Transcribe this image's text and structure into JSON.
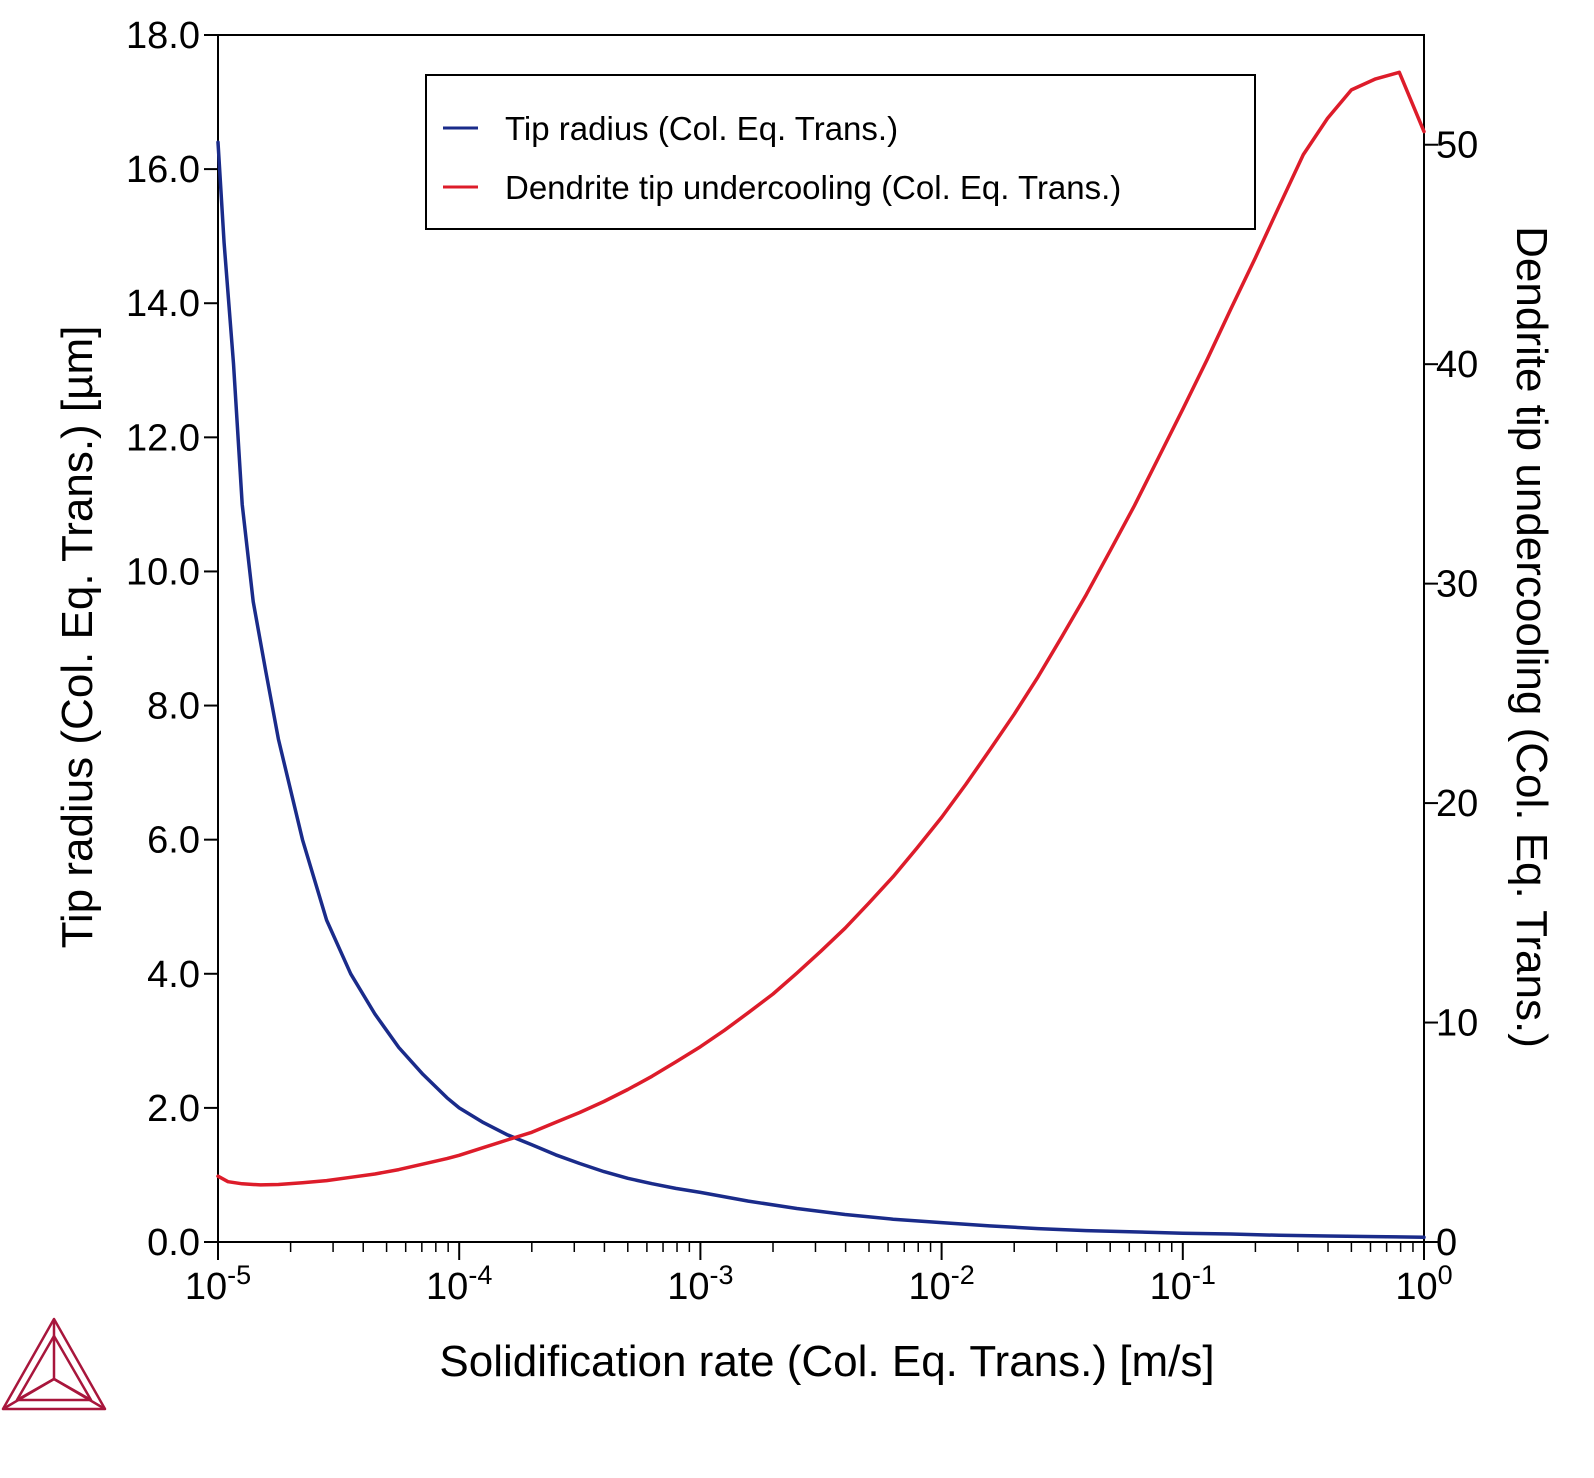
{
  "chart_data": {
    "type": "line",
    "xlabel": "Solidification rate (Col. Eq. Trans.) [m/s]",
    "ylabel_left": "Tip radius (Col. Eq. Trans.) [µm]",
    "ylabel_right": "Dendrite tip undercooling (Col. Eq. Trans.)",
    "x_scale": "log",
    "xlim": [
      1e-05,
      1
    ],
    "ylim_left": [
      0,
      18
    ],
    "ylim_right": [
      0,
      55
    ],
    "x_ticks": [
      {
        "value": 1e-05,
        "base": "10",
        "exp": "-5"
      },
      {
        "value": 0.0001,
        "base": "10",
        "exp": "-4"
      },
      {
        "value": 0.001,
        "base": "10",
        "exp": "-3"
      },
      {
        "value": 0.01,
        "base": "10",
        "exp": "-2"
      },
      {
        "value": 0.1,
        "base": "10",
        "exp": "-1"
      },
      {
        "value": 1,
        "base": "10",
        "exp": "0"
      }
    ],
    "y_ticks_left": [
      {
        "value": 0,
        "label": "0.0"
      },
      {
        "value": 2,
        "label": "2.0"
      },
      {
        "value": 4,
        "label": "4.0"
      },
      {
        "value": 6,
        "label": "6.0"
      },
      {
        "value": 8,
        "label": "8.0"
      },
      {
        "value": 10,
        "label": "10.0"
      },
      {
        "value": 12,
        "label": "12.0"
      },
      {
        "value": 14,
        "label": "14.0"
      },
      {
        "value": 16,
        "label": "16.0"
      },
      {
        "value": 18,
        "label": "18.0"
      }
    ],
    "y_ticks_right": [
      {
        "value": 0,
        "label": "0"
      },
      {
        "value": 10,
        "label": "10"
      },
      {
        "value": 20,
        "label": "20"
      },
      {
        "value": 30,
        "label": "30"
      },
      {
        "value": 40,
        "label": "40"
      },
      {
        "value": 50,
        "label": "50"
      }
    ],
    "legend_position": "top-center",
    "grid": false,
    "series": [
      {
        "name": "Tip radius (Col. Eq. Trans.)",
        "axis": "left",
        "color": "#1a2b8a",
        "x": [
          1e-05,
          1.06e-05,
          1.16e-05,
          1.26e-05,
          1.4e-05,
          1.58e-05,
          1.78e-05,
          2.24e-05,
          2.82e-05,
          3.55e-05,
          4.47e-05,
          5.62e-05,
          7.08e-05,
          8.9e-05,
          0.0001,
          0.000126,
          0.000158,
          0.0002,
          0.000251,
          0.000316,
          0.000398,
          0.0005,
          0.00063,
          0.00079,
          0.001,
          0.00158,
          0.00251,
          0.00398,
          0.0063,
          0.01,
          0.0158,
          0.0251,
          0.0398,
          0.063,
          0.1,
          0.158,
          0.251,
          0.398,
          0.63,
          1
        ],
        "y": [
          16.4,
          14.9,
          13.1,
          11.0,
          9.55,
          8.5,
          7.5,
          6.0,
          4.8,
          4.0,
          3.4,
          2.9,
          2.5,
          2.15,
          2.0,
          1.78,
          1.6,
          1.45,
          1.3,
          1.17,
          1.05,
          0.95,
          0.87,
          0.8,
          0.74,
          0.61,
          0.5,
          0.41,
          0.34,
          0.29,
          0.24,
          0.2,
          0.17,
          0.15,
          0.13,
          0.12,
          0.1,
          0.09,
          0.08,
          0.07
        ]
      },
      {
        "name": "Dendrite tip undercooling (Col. Eq. Trans.)",
        "axis": "right",
        "color": "#dd1c2a",
        "x": [
          1e-05,
          1.1e-05,
          1.26e-05,
          1.5e-05,
          1.78e-05,
          2.24e-05,
          2.82e-05,
          3.55e-05,
          4.47e-05,
          5.62e-05,
          7.08e-05,
          8.9e-05,
          0.0001,
          0.000126,
          0.000158,
          0.0002,
          0.000251,
          0.000316,
          0.000398,
          0.0005,
          0.00063,
          0.00079,
          0.001,
          0.00126,
          0.00158,
          0.002,
          0.00251,
          0.00316,
          0.00398,
          0.005,
          0.0063,
          0.0079,
          0.01,
          0.0126,
          0.0158,
          0.02,
          0.0251,
          0.0316,
          0.0398,
          0.05,
          0.063,
          0.079,
          0.1,
          0.126,
          0.158,
          0.2,
          0.251,
          0.316,
          0.398,
          0.5,
          0.63,
          0.79,
          1
        ],
        "y": [
          3.0,
          2.75,
          2.65,
          2.6,
          2.62,
          2.7,
          2.8,
          2.95,
          3.1,
          3.3,
          3.55,
          3.8,
          3.95,
          4.3,
          4.65,
          5.0,
          5.45,
          5.9,
          6.4,
          6.95,
          7.55,
          8.2,
          8.9,
          9.65,
          10.45,
          11.3,
          12.25,
          13.25,
          14.3,
          15.45,
          16.65,
          17.95,
          19.35,
          20.85,
          22.4,
          24.05,
          25.75,
          27.6,
          29.5,
          31.5,
          33.55,
          35.7,
          37.95,
          40.2,
          42.5,
          44.85,
          47.2,
          49.55,
          51.2,
          52.5,
          53.0,
          53.3,
          50.6
        ]
      }
    ]
  }
}
